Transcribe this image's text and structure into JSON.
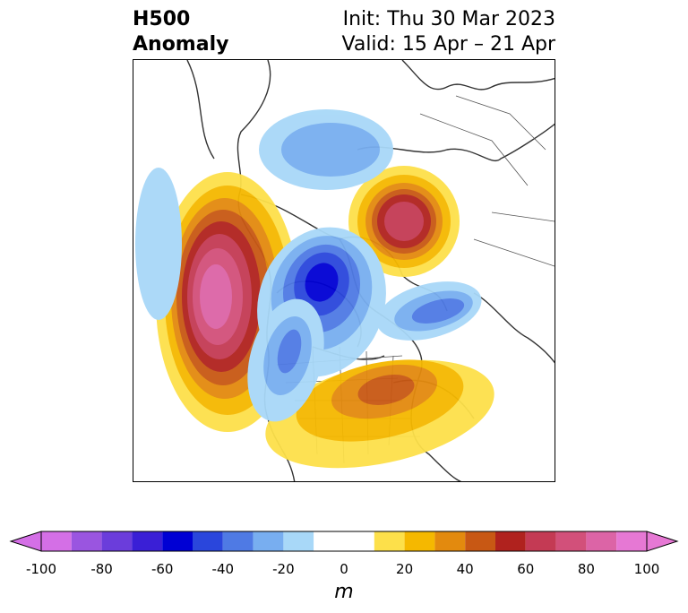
{
  "title": {
    "left_line1": "H500",
    "left_line2": "Anomaly",
    "right_line1": "Init: Thu 30 Mar 2023",
    "right_line2": "Valid: 15 Apr – 21 Apr"
  },
  "colorbar": {
    "unit": "m",
    "ticks": [
      "-100",
      "-80",
      "-60",
      "-40",
      "-20",
      "0",
      "20",
      "40",
      "60",
      "80",
      "100"
    ],
    "bins": [
      -100,
      -90,
      -80,
      -70,
      -60,
      -50,
      -40,
      -30,
      -20,
      -10,
      10,
      20,
      30,
      40,
      50,
      60,
      70,
      80,
      90,
      100
    ],
    "colors": [
      "#d46fe6",
      "#9a55e0",
      "#6b3ddb",
      "#3a1fd6",
      "#0000d4",
      "#2a46dc",
      "#4f7ae4",
      "#78aef0",
      "#a8d8f8",
      "#ffffff",
      "#fde04a",
      "#f5b800",
      "#e38a0e",
      "#c85814",
      "#b0221e",
      "#c43a54",
      "#d2507a",
      "#dc64a6",
      "#e678d4"
    ],
    "extend": "both"
  },
  "map": {
    "projection": "polar-stereographic-north",
    "anomaly_centers": [
      {
        "label": "positive",
        "region": "northeast-pacific",
        "peak_m": 95
      },
      {
        "label": "positive",
        "region": "greenland-arctic",
        "peak_m": 80
      },
      {
        "label": "positive",
        "region": "eastern-us-atlantic",
        "peak_m": 55
      },
      {
        "label": "negative",
        "region": "canadian-arctic-archipelago",
        "peak_m": -65
      },
      {
        "label": "negative",
        "region": "north-atlantic",
        "peak_m": -40
      },
      {
        "label": "negative",
        "region": "western-north-america",
        "peak_m": -45
      },
      {
        "label": "negative",
        "region": "siberia",
        "peak_m": -35
      },
      {
        "label": "negative",
        "region": "north-pacific",
        "peak_m": -15
      }
    ]
  }
}
